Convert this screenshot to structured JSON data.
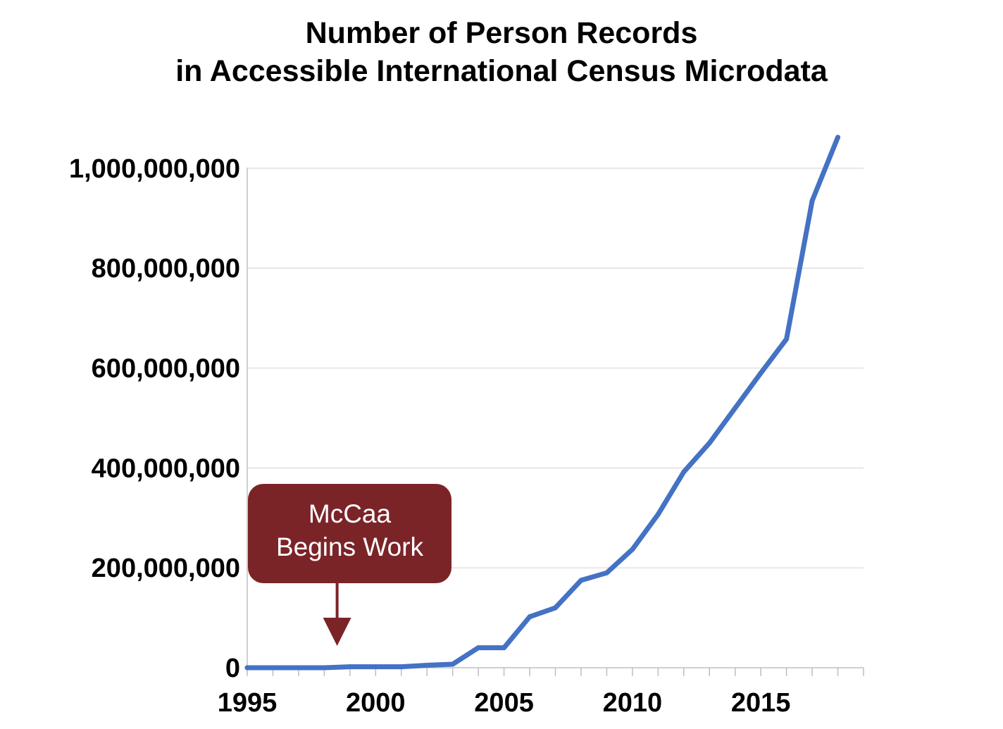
{
  "colors": {
    "series_line": "#4472C4",
    "annotation_fill": "#7B2428",
    "gridline": "#D9D9D9",
    "axis": "#BFBFBF"
  },
  "chart_data": {
    "type": "line",
    "title_lines": [
      "Number of Person Records",
      "in Accessible International Census Microdata"
    ],
    "xlabel": "",
    "ylabel": "",
    "xlim": [
      1995,
      2019
    ],
    "ylim": [
      0,
      1100000000
    ],
    "x_tick_values": [
      1995,
      2000,
      2005,
      2010,
      2015
    ],
    "x_tick_labels": [
      "1995",
      "2000",
      "2005",
      "2010",
      "2015"
    ],
    "y_tick_values": [
      0,
      200000000,
      400000000,
      600000000,
      800000000,
      1000000000
    ],
    "y_tick_labels": [
      "0",
      "200,000,000",
      "400,000,000",
      "600,000,000",
      "800,000,000",
      "1,000,000,000"
    ],
    "grid": true,
    "series": [
      {
        "x": [
          1995,
          1996,
          1997,
          1998,
          1999,
          2000,
          2001,
          2002,
          2003,
          2004,
          2005,
          2006,
          2007,
          2008,
          2009,
          2010,
          2011,
          2012,
          2013,
          2014,
          2015,
          2016,
          2017,
          2018
        ],
        "values": [
          0,
          0,
          0,
          0,
          2000000,
          2000000,
          2000000,
          5000000,
          7000000,
          40000000,
          40000000,
          102000000,
          120000000,
          175000000,
          190000000,
          237000000,
          307000000,
          392000000,
          450000000,
          520000000,
          590000000,
          658000000,
          935000000,
          1062000000
        ]
      }
    ],
    "annotation": {
      "lines": [
        "McCaa",
        "Begins Work"
      ],
      "x": 1998.5
    }
  }
}
